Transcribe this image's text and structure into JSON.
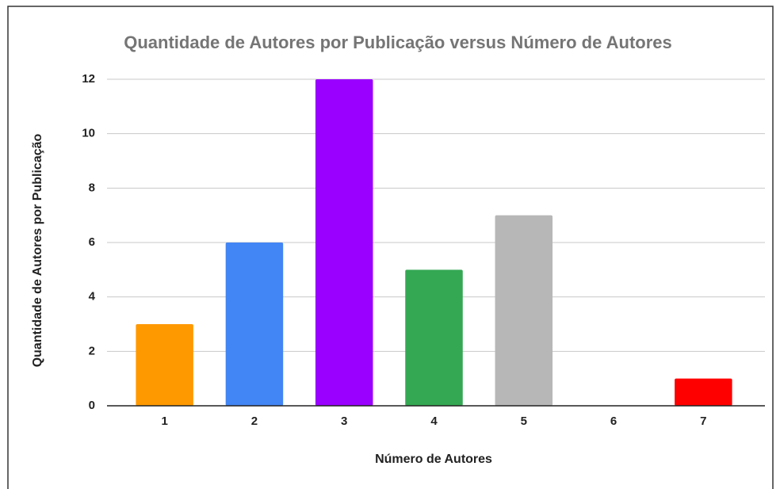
{
  "chart_data": {
    "type": "bar",
    "title": "Quantidade de Autores por Publicação versus Número de Autores",
    "x_label": "Número de Autores",
    "y_label": "Quantidade de Autores por Publicação",
    "categories": [
      "1",
      "2",
      "3",
      "4",
      "5",
      "6",
      "7"
    ],
    "values": [
      3,
      6,
      12,
      5,
      7,
      0,
      1
    ],
    "colors": [
      "#ff9900",
      "#4285f4",
      "#9900ff",
      "#34a853",
      "#b7b7b7",
      "#46bdc6",
      "#ff0000"
    ],
    "ylim": [
      0,
      12
    ],
    "yticks": [
      0,
      2,
      4,
      6,
      8,
      10,
      12
    ],
    "grid": true
  }
}
